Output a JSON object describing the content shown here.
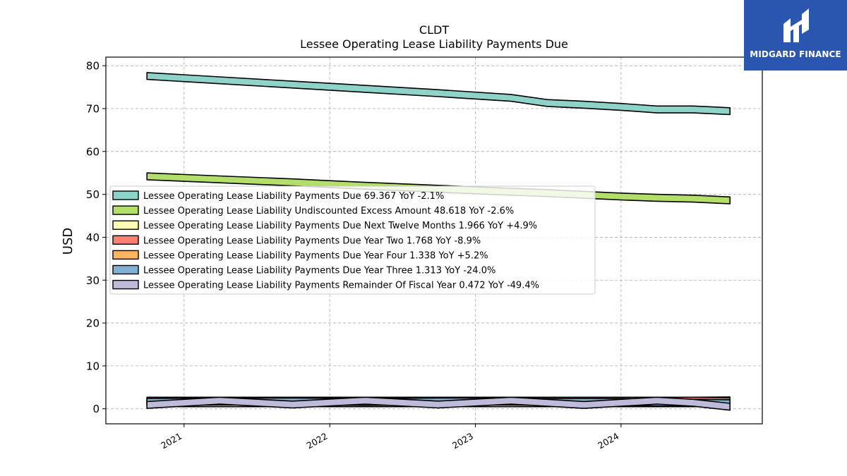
{
  "brand": {
    "name": "MIDGARD FINANCE",
    "bg": "#2a56b0"
  },
  "chart_data": {
    "type": "area",
    "title": "CLDT",
    "subtitle": "Lessee Operating Lease Liability Payments Due",
    "xlabel": "",
    "ylabel": "USD",
    "ylim": [
      -3.5,
      82
    ],
    "yticks": [
      0,
      10,
      20,
      30,
      40,
      50,
      60,
      70,
      80
    ],
    "xticks": [
      "2021",
      "2022",
      "2023",
      "2024"
    ],
    "xlim": [
      "2020-06-19",
      "2024-12-20"
    ],
    "grid": true,
    "legend_position": "center-left",
    "x": [
      "2020-09-30",
      "2021-03-31",
      "2021-09-30",
      "2022-03-31",
      "2022-09-30",
      "2023-03-31",
      "2023-06-30",
      "2023-09-30",
      "2023-12-31",
      "2024-03-31",
      "2024-06-30",
      "2024-09-30"
    ],
    "series": [
      {
        "name": "Lessee Operating Lease Liability Payments Due",
        "legend": "Lessee Operating Lease Liability Payments Due  69.367 YoY -2.1%",
        "color": "#8dd3c7",
        "values": [
          77.6,
          76.6,
          75.6,
          74.6,
          73.6,
          72.5,
          71.3,
          70.9,
          70.4,
          69.8,
          69.8,
          69.4
        ]
      },
      {
        "name": "Lessee Operating Lease Liability Undiscounted Excess Amount",
        "legend": "Lessee Operating Lease Liability Undiscounted Excess Amount  48.618 YoY -2.6%",
        "color": "#b3de69",
        "values": [
          54.2,
          53.5,
          52.8,
          52.0,
          51.3,
          50.6,
          50.3,
          49.9,
          49.5,
          49.2,
          49.0,
          48.6
        ]
      },
      {
        "name": "Lessee Operating Lease Liability Payments Due Next Twelve Months",
        "legend": "Lessee Operating Lease Liability Payments Due Next Twelve Months  1.966 YoY +4.9%",
        "color": "#ffffb3",
        "values": [
          1.9,
          1.9,
          1.9,
          1.9,
          1.9,
          1.9,
          1.9,
          1.9,
          1.9,
          1.9,
          1.9,
          1.966
        ]
      },
      {
        "name": "Lessee Operating Lease Liability Payments Due Year Two",
        "legend": "Lessee Operating Lease Liability Payments Due Year Two  1.768 YoY -8.9%",
        "color": "#fb8072",
        "values": [
          1.9,
          1.9,
          1.9,
          1.9,
          1.9,
          1.9,
          1.9,
          1.9,
          1.9,
          1.9,
          1.9,
          1.768
        ]
      },
      {
        "name": "Lessee Operating Lease Liability Payments Due Year Four",
        "legend": "Lessee Operating Lease Liability Payments Due Year Four  1.338 YoY +5.2%",
        "color": "#fdb462",
        "values": [
          1.3,
          1.3,
          1.3,
          1.3,
          1.3,
          1.3,
          1.3,
          1.3,
          1.3,
          1.3,
          1.3,
          1.338
        ]
      },
      {
        "name": "Lessee Operating Lease Liability Payments Due Year Three",
        "legend": "Lessee Operating Lease Liability Payments Due Year Three  1.313 YoY -24.0%",
        "color": "#80b1d3",
        "values": [
          1.6,
          1.7,
          1.7,
          1.6,
          1.7,
          1.7,
          1.6,
          1.6,
          1.6,
          1.5,
          1.4,
          1.313
        ]
      },
      {
        "name": "Lessee Operating Lease Liability Payments Remainder Of Fiscal Year",
        "legend": "Lessee Operating Lease Liability Payments Remainder Of Fiscal Year  0.472 YoY -49.4%",
        "color": "#bebada",
        "values": [
          0.9,
          1.9,
          1.0,
          1.9,
          1.0,
          1.9,
          1.4,
          0.9,
          1.4,
          1.9,
          1.4,
          0.472
        ]
      }
    ]
  }
}
